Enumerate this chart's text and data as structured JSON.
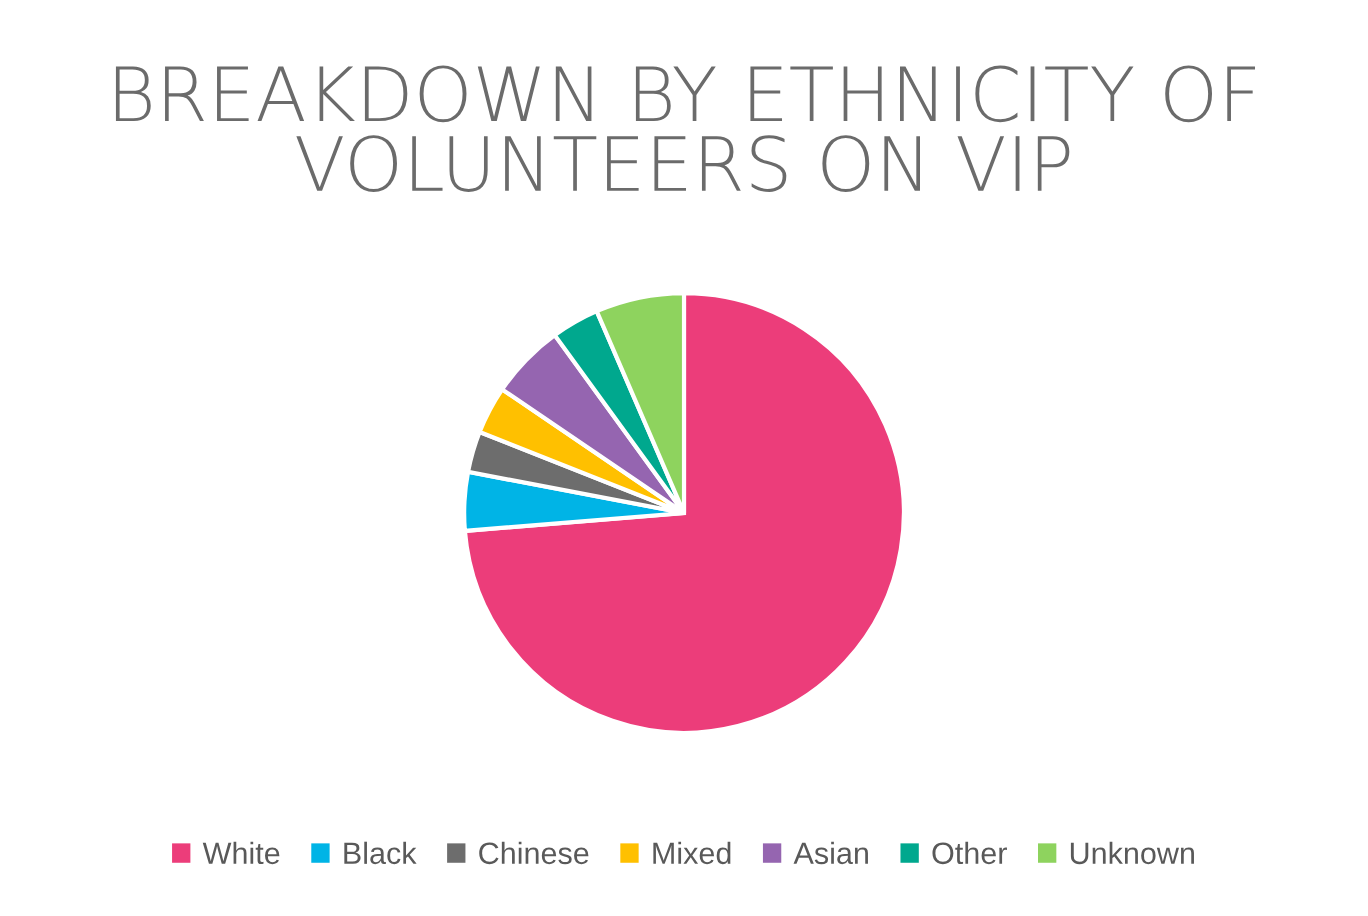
{
  "chart_data": {
    "type": "pie",
    "title": "BREAKDOWN BY ETHNICITY OF\nVOLUNTEERS ON VIP",
    "categories": [
      "White",
      "Black",
      "Chinese",
      "Mixed",
      "Asian",
      "Other",
      "Unknown"
    ],
    "values": [
      73.7,
      4.3,
      3,
      3.5,
      5.5,
      3.5,
      6.5
    ],
    "colors": [
      "#ec3d7a",
      "#00b4e6",
      "#6d6d6d",
      "#ffc000",
      "#9565b0",
      "#00a88e",
      "#8ed35e"
    ],
    "legend": "bottom"
  }
}
